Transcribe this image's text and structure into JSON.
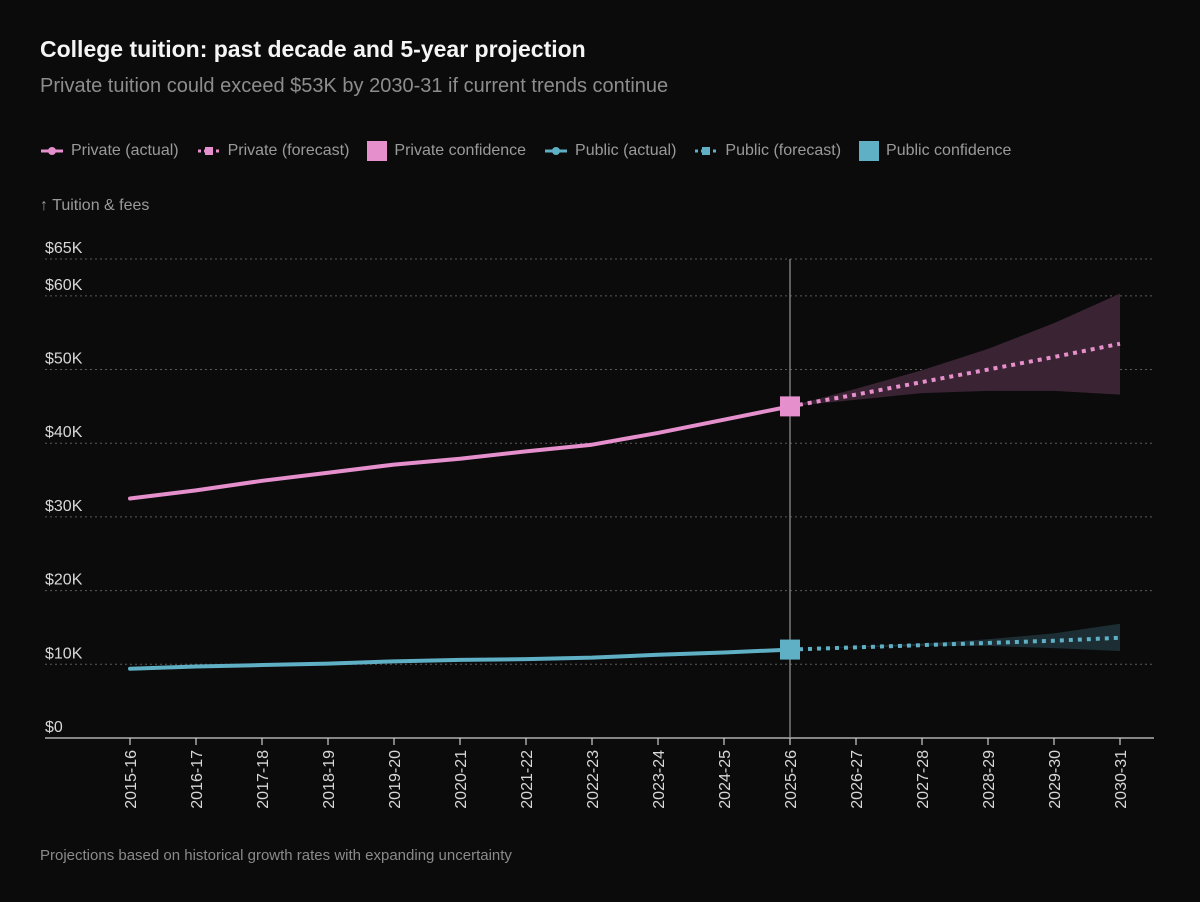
{
  "title": "College tuition: past decade and 5-year projection",
  "subtitle": "Private tuition could exceed $53K by 2030-31 if current trends continue",
  "footnote": "Projections based on historical growth rates with expanding uncertainty",
  "colors": {
    "private": "#e58fcc",
    "public": "#5fafc5",
    "private_band": "#3a2333",
    "public_band": "#1c2e33",
    "grid": "#5a5a5a",
    "axis": "#cfcfcf",
    "background": "#0b0b0c"
  },
  "legend": [
    {
      "key": "private_actual",
      "label": "Private (actual)",
      "color": "#e58fcc",
      "style": "solid-circle"
    },
    {
      "key": "private_forecast",
      "label": "Private (forecast)",
      "color": "#e58fcc",
      "style": "dotted-square"
    },
    {
      "key": "private_conf",
      "label": "Private confidence",
      "color": "#e58fcc",
      "style": "swatch"
    },
    {
      "key": "public_actual",
      "label": "Public (actual)",
      "color": "#5fafc5",
      "style": "solid-circle"
    },
    {
      "key": "public_forecast",
      "label": "Public (forecast)",
      "color": "#5fafc5",
      "style": "dotted-square"
    },
    {
      "key": "public_conf",
      "label": "Public confidence",
      "color": "#5fafc5",
      "style": "swatch"
    }
  ],
  "chart_data": {
    "type": "line",
    "title": "College tuition: past decade and 5-year projection",
    "ylabel": "↑ Tuition & fees",
    "xlabel": "",
    "ylim": [
      0,
      65000
    ],
    "yticks": [
      0,
      10000,
      20000,
      30000,
      40000,
      50000,
      60000,
      65000
    ],
    "ytick_labels": [
      "$0",
      "$10K",
      "$20K",
      "$30K",
      "$40K",
      "$50K",
      "$60K",
      "$65K"
    ],
    "grid": "horizontal dotted",
    "legend_position": "top",
    "categories": [
      "2015-16",
      "2016-17",
      "2017-18",
      "2018-19",
      "2019-20",
      "2020-21",
      "2021-22",
      "2022-23",
      "2023-24",
      "2024-25",
      "2025-26",
      "2026-27",
      "2027-28",
      "2028-29",
      "2029-30",
      "2030-31"
    ],
    "reference_line": "2025-26",
    "series": [
      {
        "name": "Private (actual)",
        "style": "solid",
        "x": [
          "2015-16",
          "2016-17",
          "2017-18",
          "2018-19",
          "2019-20",
          "2020-21",
          "2021-22",
          "2022-23",
          "2023-24",
          "2024-25",
          "2025-26"
        ],
        "values": [
          32500,
          33600,
          34900,
          36000,
          37100,
          37900,
          38900,
          39800,
          41400,
          43200,
          45000
        ]
      },
      {
        "name": "Private (forecast)",
        "style": "dotted",
        "x": [
          "2025-26",
          "2026-27",
          "2027-28",
          "2028-29",
          "2029-30",
          "2030-31"
        ],
        "values": [
          45000,
          46600,
          48300,
          50000,
          51700,
          53500
        ]
      },
      {
        "name": "Private confidence",
        "style": "band",
        "x": [
          "2025-26",
          "2026-27",
          "2027-28",
          "2028-29",
          "2029-30",
          "2030-31"
        ],
        "lower": [
          45000,
          45900,
          46800,
          47100,
          47100,
          46600
        ],
        "upper": [
          45000,
          47400,
          49900,
          52800,
          56300,
          60300
        ]
      },
      {
        "name": "Public (actual)",
        "style": "solid",
        "x": [
          "2015-16",
          "2016-17",
          "2017-18",
          "2018-19",
          "2019-20",
          "2020-21",
          "2021-22",
          "2022-23",
          "2023-24",
          "2024-25",
          "2025-26"
        ],
        "values": [
          9400,
          9700,
          9900,
          10100,
          10400,
          10600,
          10700,
          10900,
          11300,
          11600,
          12000
        ]
      },
      {
        "name": "Public (forecast)",
        "style": "dotted",
        "x": [
          "2025-26",
          "2026-27",
          "2027-28",
          "2028-29",
          "2029-30",
          "2030-31"
        ],
        "values": [
          12000,
          12300,
          12600,
          12900,
          13200,
          13600
        ]
      },
      {
        "name": "Public confidence",
        "style": "band",
        "x": [
          "2025-26",
          "2026-27",
          "2027-28",
          "2028-29",
          "2029-30",
          "2030-31"
        ],
        "lower": [
          12000,
          12300,
          12500,
          12500,
          12200,
          11800
        ],
        "upper": [
          12000,
          12400,
          12800,
          13400,
          14200,
          15500
        ]
      }
    ]
  }
}
